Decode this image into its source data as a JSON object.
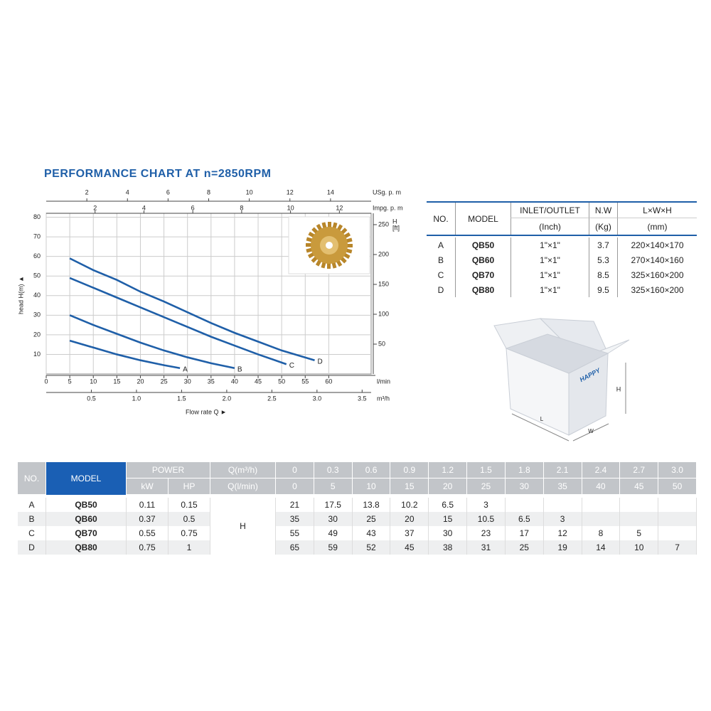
{
  "chart_data": {
    "type": "line",
    "title": "PERFORMANCE CHART AT n=2850RPM",
    "x_label": "l/min",
    "xlim": [
      0,
      69
    ],
    "xticks": [
      0,
      5,
      10,
      15,
      20,
      25,
      30,
      35,
      40,
      45,
      50,
      55,
      60
    ],
    "y_label": "head H(m) ▲",
    "ylim": [
      0,
      82
    ],
    "yticks": [
      10,
      20,
      30,
      40,
      50,
      60,
      70,
      80
    ],
    "y2_label": [
      "H",
      "[ft]"
    ],
    "y2lim": [
      0,
      269
    ],
    "y2ticks": [
      50,
      100,
      150,
      200,
      250
    ],
    "flow_label": "Flow rate Q ►",
    "m3h_axis": {
      "label": "m³/h",
      "lim": [
        0,
        3.6
      ],
      "ticks": [
        0.5,
        {
          "value": 1,
          "label": "1.0"
        },
        1.5,
        {
          "value": 2,
          "label": "2.0"
        },
        2.5,
        {
          "value": 3,
          "label": "3.0"
        },
        3.5
      ]
    },
    "top_axes": [
      {
        "label": "USg. p. m",
        "lim": [
          0,
          16
        ],
        "ticks": [
          2,
          4,
          6,
          8,
          10,
          12,
          14
        ]
      },
      {
        "label": "Impg. p. m",
        "lim": [
          0,
          13.3
        ],
        "ticks": [
          2,
          4,
          6,
          8,
          10,
          12
        ]
      }
    ],
    "grid": true,
    "series": [
      {
        "name": "A",
        "color": "#1f5fa8",
        "x": [
          5,
          10,
          15,
          20,
          25,
          28.4
        ],
        "values": [
          17,
          13.5,
          10,
          7,
          4.5,
          3
        ]
      },
      {
        "name": "B",
        "color": "#1f5fa8",
        "x": [
          5,
          10,
          15,
          20,
          25,
          30,
          35,
          40
        ],
        "values": [
          30,
          25,
          20.5,
          16,
          12,
          8.5,
          5.5,
          3
        ]
      },
      {
        "name": "C",
        "color": "#1f5fa8",
        "x": [
          5,
          10,
          15,
          20,
          25,
          30,
          35,
          40,
          45,
          51
        ],
        "values": [
          49,
          44,
          39,
          34,
          29,
          24,
          19,
          14.5,
          10,
          5
        ]
      },
      {
        "name": "D",
        "color": "#1f5fa8",
        "x": [
          5,
          10,
          15,
          20,
          25,
          30,
          35,
          40,
          45,
          50,
          57
        ],
        "values": [
          59,
          53,
          48,
          42,
          37,
          31.5,
          26,
          21,
          16.5,
          12,
          7
        ]
      }
    ]
  },
  "spec_table": {
    "headers": [
      "NO.",
      "MODEL",
      "INLET/OUTLET",
      "N.W",
      "L×W×H"
    ],
    "units": [
      "(Inch)",
      "(Kg)",
      "(mm)"
    ],
    "rows": [
      [
        "A",
        "QB50",
        "1\"×1\"",
        "3.7",
        "220×140×170"
      ],
      [
        "B",
        "QB60",
        "1\"×1\"",
        "5.3",
        "270×140×160"
      ],
      [
        "C",
        "QB70",
        "1\"×1\"",
        "8.5",
        "325×160×200"
      ],
      [
        "D",
        "QB80",
        "1\"×1\"",
        "9.5",
        "325×160×200"
      ]
    ]
  },
  "box_figure": {
    "brand": "HAPPY",
    "dims": [
      "H",
      "L",
      "W"
    ]
  },
  "performance_table": {
    "no_header": "NO.",
    "model_header": "MODEL",
    "power_header": "POWER",
    "power_units": [
      "kW",
      "HP"
    ],
    "q_headers": [
      "Q(m³/h)",
      "Q(l/min)"
    ],
    "q_m3h": [
      "0",
      "0.3",
      "0.6",
      "0.9",
      "1.2",
      "1.5",
      "1.8",
      "2.1",
      "2.4",
      "2.7",
      "3.0"
    ],
    "q_lmin": [
      "0",
      "5",
      "10",
      "15",
      "20",
      "25",
      "30",
      "35",
      "40",
      "45",
      "50"
    ],
    "head_label": "H",
    "rows": [
      {
        "no": "A",
        "model": "QB50",
        "kw": "0.11",
        "hp": "0.15",
        "h": [
          "21",
          "17.5",
          "13.8",
          "10.2",
          "6.5",
          "3",
          null,
          null,
          null,
          null,
          null
        ]
      },
      {
        "no": "B",
        "model": "QB60",
        "kw": "0.37",
        "hp": "0.5",
        "h": [
          "35",
          "30",
          "25",
          "20",
          "15",
          "10.5",
          "6.5",
          "3",
          null,
          null,
          null
        ]
      },
      {
        "no": "C",
        "model": "QB70",
        "kw": "0.55",
        "hp": "0.75",
        "h": [
          "55",
          "49",
          "43",
          "37",
          "30",
          "23",
          "17",
          "12",
          "8",
          "5",
          null
        ]
      },
      {
        "no": "D",
        "model": "QB80",
        "kw": "0.75",
        "hp": "1",
        "h": [
          "65",
          "59",
          "52",
          "45",
          "38",
          "31",
          "25",
          "19",
          "14",
          "10",
          "7"
        ]
      }
    ]
  }
}
